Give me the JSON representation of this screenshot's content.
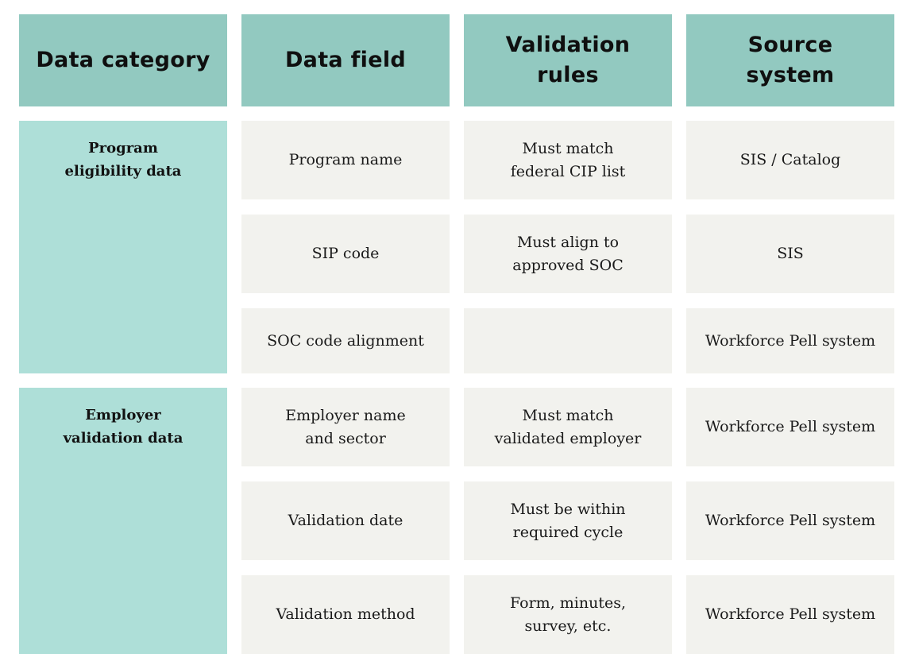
{
  "headers": {
    "category": "Data category",
    "field": "Data field",
    "rules": "Validation\nrules",
    "source": "Source\nsystem"
  },
  "categories": [
    {
      "label": "Program\neligibility data"
    },
    {
      "label": "Employer\nvalidation data"
    }
  ],
  "rows": [
    {
      "field": "Program name",
      "rule": "Must match\nfederal CIP list",
      "source": "SIS / Catalog"
    },
    {
      "field": "SIP code",
      "rule": "Must align to\napproved SOC",
      "source": "SIS"
    },
    {
      "field": "SOC code alignment",
      "rule": "",
      "source": "Workforce Pell system"
    },
    {
      "field": "Employer name\nand sector",
      "rule": "Must match\nvalidated employer",
      "source": "Workforce Pell system"
    },
    {
      "field": "Validation date",
      "rule": "Must be within\nrequired cycle",
      "source": "Workforce Pell system"
    },
    {
      "field": "Validation method",
      "rule": "Form, minutes,\nsurvey, etc.",
      "source": "Workforce Pell system"
    }
  ]
}
